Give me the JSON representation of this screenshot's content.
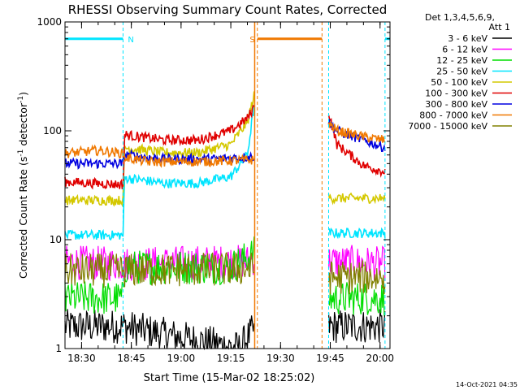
{
  "chart_data": {
    "type": "line",
    "title": "RHESSI Observing Summary Count Rates, Corrected",
    "xlabel": "Start Time (15-Mar-02 18:25:02)",
    "ylabel": "Corrected Count Rate (s",
    "ylabel_sup1": "-1",
    "ylabel_mid": " detector",
    "ylabel_sup2": "-1",
    "ylabel_end": ")",
    "yscale": "log",
    "ylim": [
      1,
      1000
    ],
    "y_ticks": [
      {
        "value": 1,
        "label": "1"
      },
      {
        "value": 10,
        "label": "10"
      },
      {
        "value": 100,
        "label": "100"
      },
      {
        "value": 1000,
        "label": "1000"
      }
    ],
    "xlim": [
      "18:25",
      "20:03"
    ],
    "x_ticks": [
      "18:30",
      "18:45",
      "19:00",
      "19:15",
      "19:30",
      "19:45",
      "20:00"
    ],
    "legend": {
      "placement": "right",
      "header": [
        "Det 1,3,4,5,6,9,",
        "Att 1"
      ],
      "entries": [
        {
          "label": "3 - 6 keV",
          "color": "#000000"
        },
        {
          "label": "6 - 12 keV",
          "color": "#ff00ff"
        },
        {
          "label": "12 - 25 keV",
          "color": "#00dd00"
        },
        {
          "label": "25 - 50 keV",
          "color": "#00e5ff"
        },
        {
          "label": "50 - 100 keV",
          "color": "#d4c800"
        },
        {
          "label": "100 - 300 keV",
          "color": "#e00000"
        },
        {
          "label": "300 - 800 keV",
          "color": "#0000e0"
        },
        {
          "label": "800 - 7000 keV",
          "color": "#f07800"
        },
        {
          "label": "7000 - 15000 keV",
          "color": "#808000"
        }
      ]
    },
    "night_marker": {
      "label": "N",
      "color": "#00e5ff",
      "level": 700,
      "intervals": [
        [
          "18:25",
          "18:42.5"
        ],
        [
          "20:01.5",
          "20:03"
        ]
      ],
      "lines": [
        "18:25",
        "18:42.5",
        "19:44.5",
        "20:01.5"
      ]
    },
    "saa_marker": {
      "label": "S",
      "color": "#f07800",
      "level": 700,
      "intervals": [
        [
          "19:23",
          "19:42.5"
        ]
      ],
      "lines": [
        "19:23",
        "19:42.5"
      ]
    },
    "gaps": [
      [
        "19:22.2",
        "19:44.5"
      ]
    ],
    "series": [
      {
        "name": "3 - 6 keV",
        "color": "#000000",
        "noisy": true,
        "points": [
          [
            "18:25",
            1.6
          ],
          [
            "18:42.5",
            1.6
          ],
          [
            "19:17.5",
            1.0
          ],
          [
            "19:22",
            1.5
          ],
          [
            "19:44.5",
            1.6
          ],
          [
            "20:01.5",
            1.6
          ]
        ]
      },
      {
        "name": "6 - 12 keV",
        "color": "#ff00ff",
        "noisy": true,
        "points": [
          [
            "18:25",
            6.2
          ],
          [
            "18:42.5",
            6.0
          ],
          [
            "19:20",
            6.3
          ],
          [
            "19:22",
            6.8
          ],
          [
            "19:44.5",
            6.3
          ],
          [
            "20:01.5",
            6.0
          ]
        ]
      },
      {
        "name": "12 - 25 keV",
        "color": "#00dd00",
        "noisy": true,
        "points": [
          [
            "18:25",
            2.9
          ],
          [
            "18:42.5",
            2.9
          ],
          [
            "18:43",
            5.6
          ],
          [
            "19:15",
            5.6
          ],
          [
            "19:22",
            7.5
          ],
          [
            "19:44.5",
            2.9
          ],
          [
            "20:01.5",
            2.9
          ]
        ]
      },
      {
        "name": "25 - 50 keV",
        "color": "#00e5ff",
        "noisy": false,
        "points": [
          [
            "18:25",
            11
          ],
          [
            "18:42.5",
            11
          ],
          [
            "18:43",
            37
          ],
          [
            "18:55",
            33
          ],
          [
            "19:05",
            33
          ],
          [
            "19:15",
            38
          ],
          [
            "19:20",
            60
          ],
          [
            "19:22",
            170
          ],
          [
            "19:44.5",
            11.5
          ],
          [
            "20:01.5",
            11.5
          ]
        ]
      },
      {
        "name": "50 - 100 keV",
        "color": "#d4c800",
        "noisy": false,
        "points": [
          [
            "18:25",
            23
          ],
          [
            "18:42.5",
            23
          ],
          [
            "18:43",
            70
          ],
          [
            "18:55",
            63
          ],
          [
            "19:05",
            63
          ],
          [
            "19:15",
            75
          ],
          [
            "19:20",
            120
          ],
          [
            "19:22",
            210
          ],
          [
            "19:45",
            24
          ],
          [
            "20:01.5",
            24
          ]
        ]
      },
      {
        "name": "100 - 300 keV",
        "color": "#e00000",
        "noisy": false,
        "points": [
          [
            "18:25",
            34
          ],
          [
            "18:42.5",
            32
          ],
          [
            "18:43",
            92
          ],
          [
            "18:55",
            82
          ],
          [
            "19:05",
            82
          ],
          [
            "19:15",
            100
          ],
          [
            "19:20",
            130
          ],
          [
            "19:22",
            165
          ],
          [
            "19:44.5",
            150
          ],
          [
            "19:47",
            75
          ],
          [
            "19:55",
            48
          ],
          [
            "20:01.5",
            42
          ]
        ]
      },
      {
        "name": "300 - 800 keV",
        "color": "#0000e0",
        "noisy": false,
        "points": [
          [
            "18:25",
            50
          ],
          [
            "18:42.5",
            50
          ],
          [
            "18:43",
            60
          ],
          [
            "18:55",
            55
          ],
          [
            "19:10",
            55
          ],
          [
            "19:22",
            58
          ],
          [
            "19:44.5",
            120
          ],
          [
            "19:47",
            100
          ],
          [
            "19:55",
            82
          ],
          [
            "20:01.5",
            70
          ]
        ]
      },
      {
        "name": "800 - 7000 keV",
        "color": "#f07800",
        "noisy": false,
        "points": [
          [
            "18:25",
            62
          ],
          [
            "18:35",
            66
          ],
          [
            "18:42.5",
            62
          ],
          [
            "18:43",
            57
          ],
          [
            "18:50",
            52
          ],
          [
            "19:05",
            52
          ],
          [
            "19:22",
            54
          ],
          [
            "19:44.5",
            118
          ],
          [
            "19:47",
            100
          ],
          [
            "19:55",
            88
          ],
          [
            "20:01.5",
            82
          ]
        ]
      },
      {
        "name": "7000 - 15000 keV",
        "color": "#808000",
        "noisy": true,
        "points": [
          [
            "18:25",
            5.2
          ],
          [
            "18:42.5",
            5.2
          ],
          [
            "19:22",
            5.4
          ],
          [
            "19:44.5",
            4.5
          ],
          [
            "20:01.5",
            4.5
          ]
        ]
      }
    ]
  },
  "footer": {
    "timestamp": "14-Oct-2021 04:35"
  }
}
